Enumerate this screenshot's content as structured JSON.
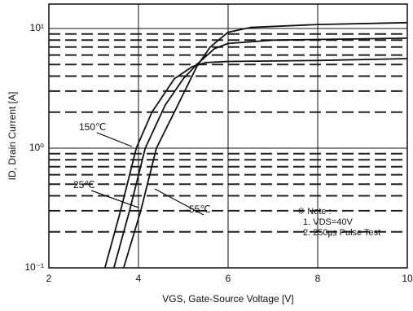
{
  "chart_data": {
    "type": "line",
    "xlabel": "VGS, Gate-Source Voltage [V]",
    "ylabel": "ID, Drain Current [A]",
    "xlim": [
      2,
      10
    ],
    "xticks": [
      2,
      4,
      6,
      8,
      10
    ],
    "ylim": [
      0.1,
      16
    ],
    "yticks": [
      {
        "value": 0.1,
        "label": "10⁻¹"
      },
      {
        "value": 1,
        "label": "10⁰"
      },
      {
        "value": 10,
        "label": "10¹"
      }
    ],
    "log_y": true,
    "grid": true,
    "minor_grid": true,
    "series": [
      {
        "name": "150℃",
        "color": "#111111",
        "x": [
          3.25,
          3.6,
          3.95,
          4.3,
          4.8,
          5.2,
          5.5,
          6,
          8,
          10
        ],
        "values": [
          0.1,
          0.3,
          1.0,
          2.0,
          3.8,
          4.8,
          5.2,
          5.3,
          5.4,
          5.6
        ]
      },
      {
        "name": "25℃",
        "color": "#111111",
        "x": [
          3.45,
          3.8,
          4.15,
          4.6,
          5.0,
          5.3,
          5.7,
          6,
          7,
          10
        ],
        "values": [
          0.1,
          0.3,
          1.0,
          2.3,
          3.8,
          5.0,
          6.8,
          7.5,
          8.0,
          8.3
        ]
      },
      {
        "name": "-55℃",
        "color": "#111111",
        "x": [
          3.67,
          4.05,
          4.4,
          4.8,
          5.3,
          5.6,
          6,
          6.5,
          8,
          10
        ],
        "values": [
          0.1,
          0.3,
          1.0,
          2.0,
          4.8,
          7.0,
          9.3,
          10.2,
          10.8,
          11.2
        ]
      }
    ],
    "notes": [
      "※ Note :",
      "1. VDS=40V",
      "2. 250㎲ Pulse Test"
    ]
  }
}
